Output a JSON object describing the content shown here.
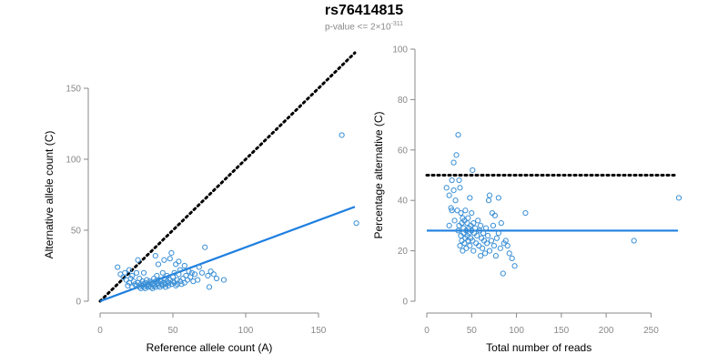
{
  "title": "rs76414815",
  "subtitle": {
    "prefix": "p-value <= 2",
    "times": "×",
    "base": "10",
    "exponent": "-311"
  },
  "colors": {
    "points": "#3a8fd6",
    "fit": "#1e7fe0",
    "reference": "#000000",
    "axis": "#888888"
  },
  "chart_data": [
    {
      "type": "scatter",
      "xlabel": "Reference allele count (A)",
      "ylabel": "Alternative allele count (C)",
      "xlim": [
        0,
        175
      ],
      "ylim": [
        0,
        150
      ],
      "xticks": [
        0,
        50,
        100,
        150
      ],
      "yticks": [
        0,
        50,
        100,
        150
      ],
      "reference_line": {
        "style": "dotted",
        "slope": 1,
        "intercept": 0
      },
      "fit_line": {
        "style": "solid",
        "slope": 0.38,
        "intercept": 0
      },
      "points": [
        [
          12,
          24
        ],
        [
          14,
          19
        ],
        [
          16,
          17
        ],
        [
          17,
          20
        ],
        [
          18,
          15
        ],
        [
          19,
          11
        ],
        [
          20,
          13
        ],
        [
          21,
          16
        ],
        [
          22,
          10
        ],
        [
          22,
          18
        ],
        [
          23,
          14
        ],
        [
          24,
          12
        ],
        [
          25,
          20
        ],
        [
          25,
          11
        ],
        [
          26,
          29
        ],
        [
          26,
          13
        ],
        [
          27,
          10
        ],
        [
          27,
          16
        ],
        [
          28,
          12
        ],
        [
          28,
          9
        ],
        [
          29,
          14
        ],
        [
          29,
          11
        ],
        [
          30,
          10
        ],
        [
          30,
          12
        ],
        [
          31,
          13
        ],
        [
          31,
          9
        ],
        [
          32,
          11
        ],
        [
          32,
          15
        ],
        [
          33,
          10
        ],
        [
          33,
          12
        ],
        [
          34,
          14
        ],
        [
          34,
          11
        ],
        [
          35,
          13
        ],
        [
          35,
          10
        ],
        [
          36,
          12
        ],
        [
          36,
          9
        ],
        [
          37,
          16
        ],
        [
          37,
          11
        ],
        [
          38,
          14
        ],
        [
          38,
          10
        ],
        [
          39,
          12
        ],
        [
          39,
          18
        ],
        [
          40,
          11
        ],
        [
          40,
          13
        ],
        [
          41,
          15
        ],
        [
          41,
          10
        ],
        [
          42,
          12
        ],
        [
          42,
          14
        ],
        [
          43,
          20
        ],
        [
          43,
          11
        ],
        [
          44,
          13
        ],
        [
          44,
          16
        ],
        [
          45,
          12
        ],
        [
          45,
          10
        ],
        [
          46,
          14
        ],
        [
          46,
          18
        ],
        [
          47,
          11
        ],
        [
          47,
          13
        ],
        [
          48,
          15
        ],
        [
          48,
          30
        ],
        [
          49,
          12
        ],
        [
          49,
          34
        ],
        [
          50,
          17
        ],
        [
          50,
          14
        ],
        [
          51,
          13
        ],
        [
          51,
          20
        ],
        [
          52,
          11
        ],
        [
          52,
          26
        ],
        [
          53,
          15
        ],
        [
          53,
          12
        ],
        [
          54,
          19
        ],
        [
          54,
          28
        ],
        [
          55,
          14
        ],
        [
          55,
          22
        ],
        [
          56,
          12
        ],
        [
          57,
          16
        ],
        [
          58,
          13
        ],
        [
          59,
          18
        ],
        [
          60,
          15
        ],
        [
          61,
          21
        ],
        [
          62,
          17
        ],
        [
          63,
          20
        ],
        [
          64,
          14
        ],
        [
          65,
          19
        ],
        [
          67,
          15
        ],
        [
          68,
          24
        ],
        [
          70,
          20
        ],
        [
          72,
          38
        ],
        [
          74,
          18
        ],
        [
          75,
          10
        ],
        [
          76,
          21
        ],
        [
          78,
          19
        ],
        [
          80,
          16
        ],
        [
          85,
          15
        ],
        [
          40,
          26
        ],
        [
          44,
          29
        ],
        [
          38,
          32
        ],
        [
          58,
          25
        ],
        [
          30,
          20
        ],
        [
          20,
          22
        ],
        [
          166,
          117
        ],
        [
          176,
          55
        ]
      ]
    },
    {
      "type": "scatter",
      "xlabel": "Total number of reads",
      "ylabel": "Percentage alternative (C)",
      "xlim": [
        0,
        280
      ],
      "ylim": [
        0,
        100
      ],
      "xticks": [
        0,
        50,
        100,
        150,
        200,
        250
      ],
      "yticks": [
        0,
        20,
        40,
        60,
        80,
        100
      ],
      "reference_line": {
        "style": "dotted",
        "y": 50
      },
      "fit_line": {
        "style": "solid",
        "y": 28
      },
      "points": [
        [
          22,
          45
        ],
        [
          25,
          42
        ],
        [
          27,
          37
        ],
        [
          28,
          48
        ],
        [
          30,
          44
        ],
        [
          31,
          32
        ],
        [
          32,
          40
        ],
        [
          33,
          58
        ],
        [
          34,
          36
        ],
        [
          35,
          66
        ],
        [
          35,
          28
        ],
        [
          36,
          30
        ],
        [
          37,
          45
        ],
        [
          37,
          22
        ],
        [
          38,
          35
        ],
        [
          38,
          26
        ],
        [
          39,
          31
        ],
        [
          39,
          24
        ],
        [
          40,
          33
        ],
        [
          40,
          20
        ],
        [
          41,
          27
        ],
        [
          41,
          29
        ],
        [
          42,
          32
        ],
        [
          42,
          23
        ],
        [
          43,
          36
        ],
        [
          43,
          25
        ],
        [
          44,
          28
        ],
        [
          44,
          21
        ],
        [
          45,
          31
        ],
        [
          45,
          26
        ],
        [
          46,
          33
        ],
        [
          46,
          24
        ],
        [
          47,
          29
        ],
        [
          47,
          27
        ],
        [
          48,
          41
        ],
        [
          48,
          22
        ],
        [
          49,
          30
        ],
        [
          49,
          25
        ],
        [
          50,
          35
        ],
        [
          50,
          28
        ],
        [
          51,
          52
        ],
        [
          51,
          24
        ],
        [
          52,
          31
        ],
        [
          52,
          20
        ],
        [
          53,
          27
        ],
        [
          54,
          29
        ],
        [
          55,
          23
        ],
        [
          56,
          26
        ],
        [
          57,
          32
        ],
        [
          58,
          22
        ],
        [
          59,
          28
        ],
        [
          60,
          30
        ],
        [
          60,
          18
        ],
        [
          61,
          25
        ],
        [
          62,
          21
        ],
        [
          63,
          27
        ],
        [
          64,
          24
        ],
        [
          65,
          19
        ],
        [
          66,
          29
        ],
        [
          67,
          23
        ],
        [
          68,
          26
        ],
        [
          69,
          40
        ],
        [
          70,
          42
        ],
        [
          70,
          20
        ],
        [
          72,
          24
        ],
        [
          73,
          35
        ],
        [
          74,
          30
        ],
        [
          75,
          22
        ],
        [
          76,
          34
        ],
        [
          77,
          18
        ],
        [
          78,
          25
        ],
        [
          80,
          27
        ],
        [
          80,
          41
        ],
        [
          82,
          21
        ],
        [
          83,
          31
        ],
        [
          85,
          11
        ],
        [
          86,
          23
        ],
        [
          88,
          24
        ],
        [
          90,
          22
        ],
        [
          92,
          19
        ],
        [
          95,
          17
        ],
        [
          98,
          14
        ],
        [
          30,
          55
        ],
        [
          28,
          36
        ],
        [
          36,
          48
        ],
        [
          25,
          30
        ],
        [
          110,
          35
        ],
        [
          231,
          24
        ],
        [
          281,
          41
        ]
      ]
    }
  ]
}
